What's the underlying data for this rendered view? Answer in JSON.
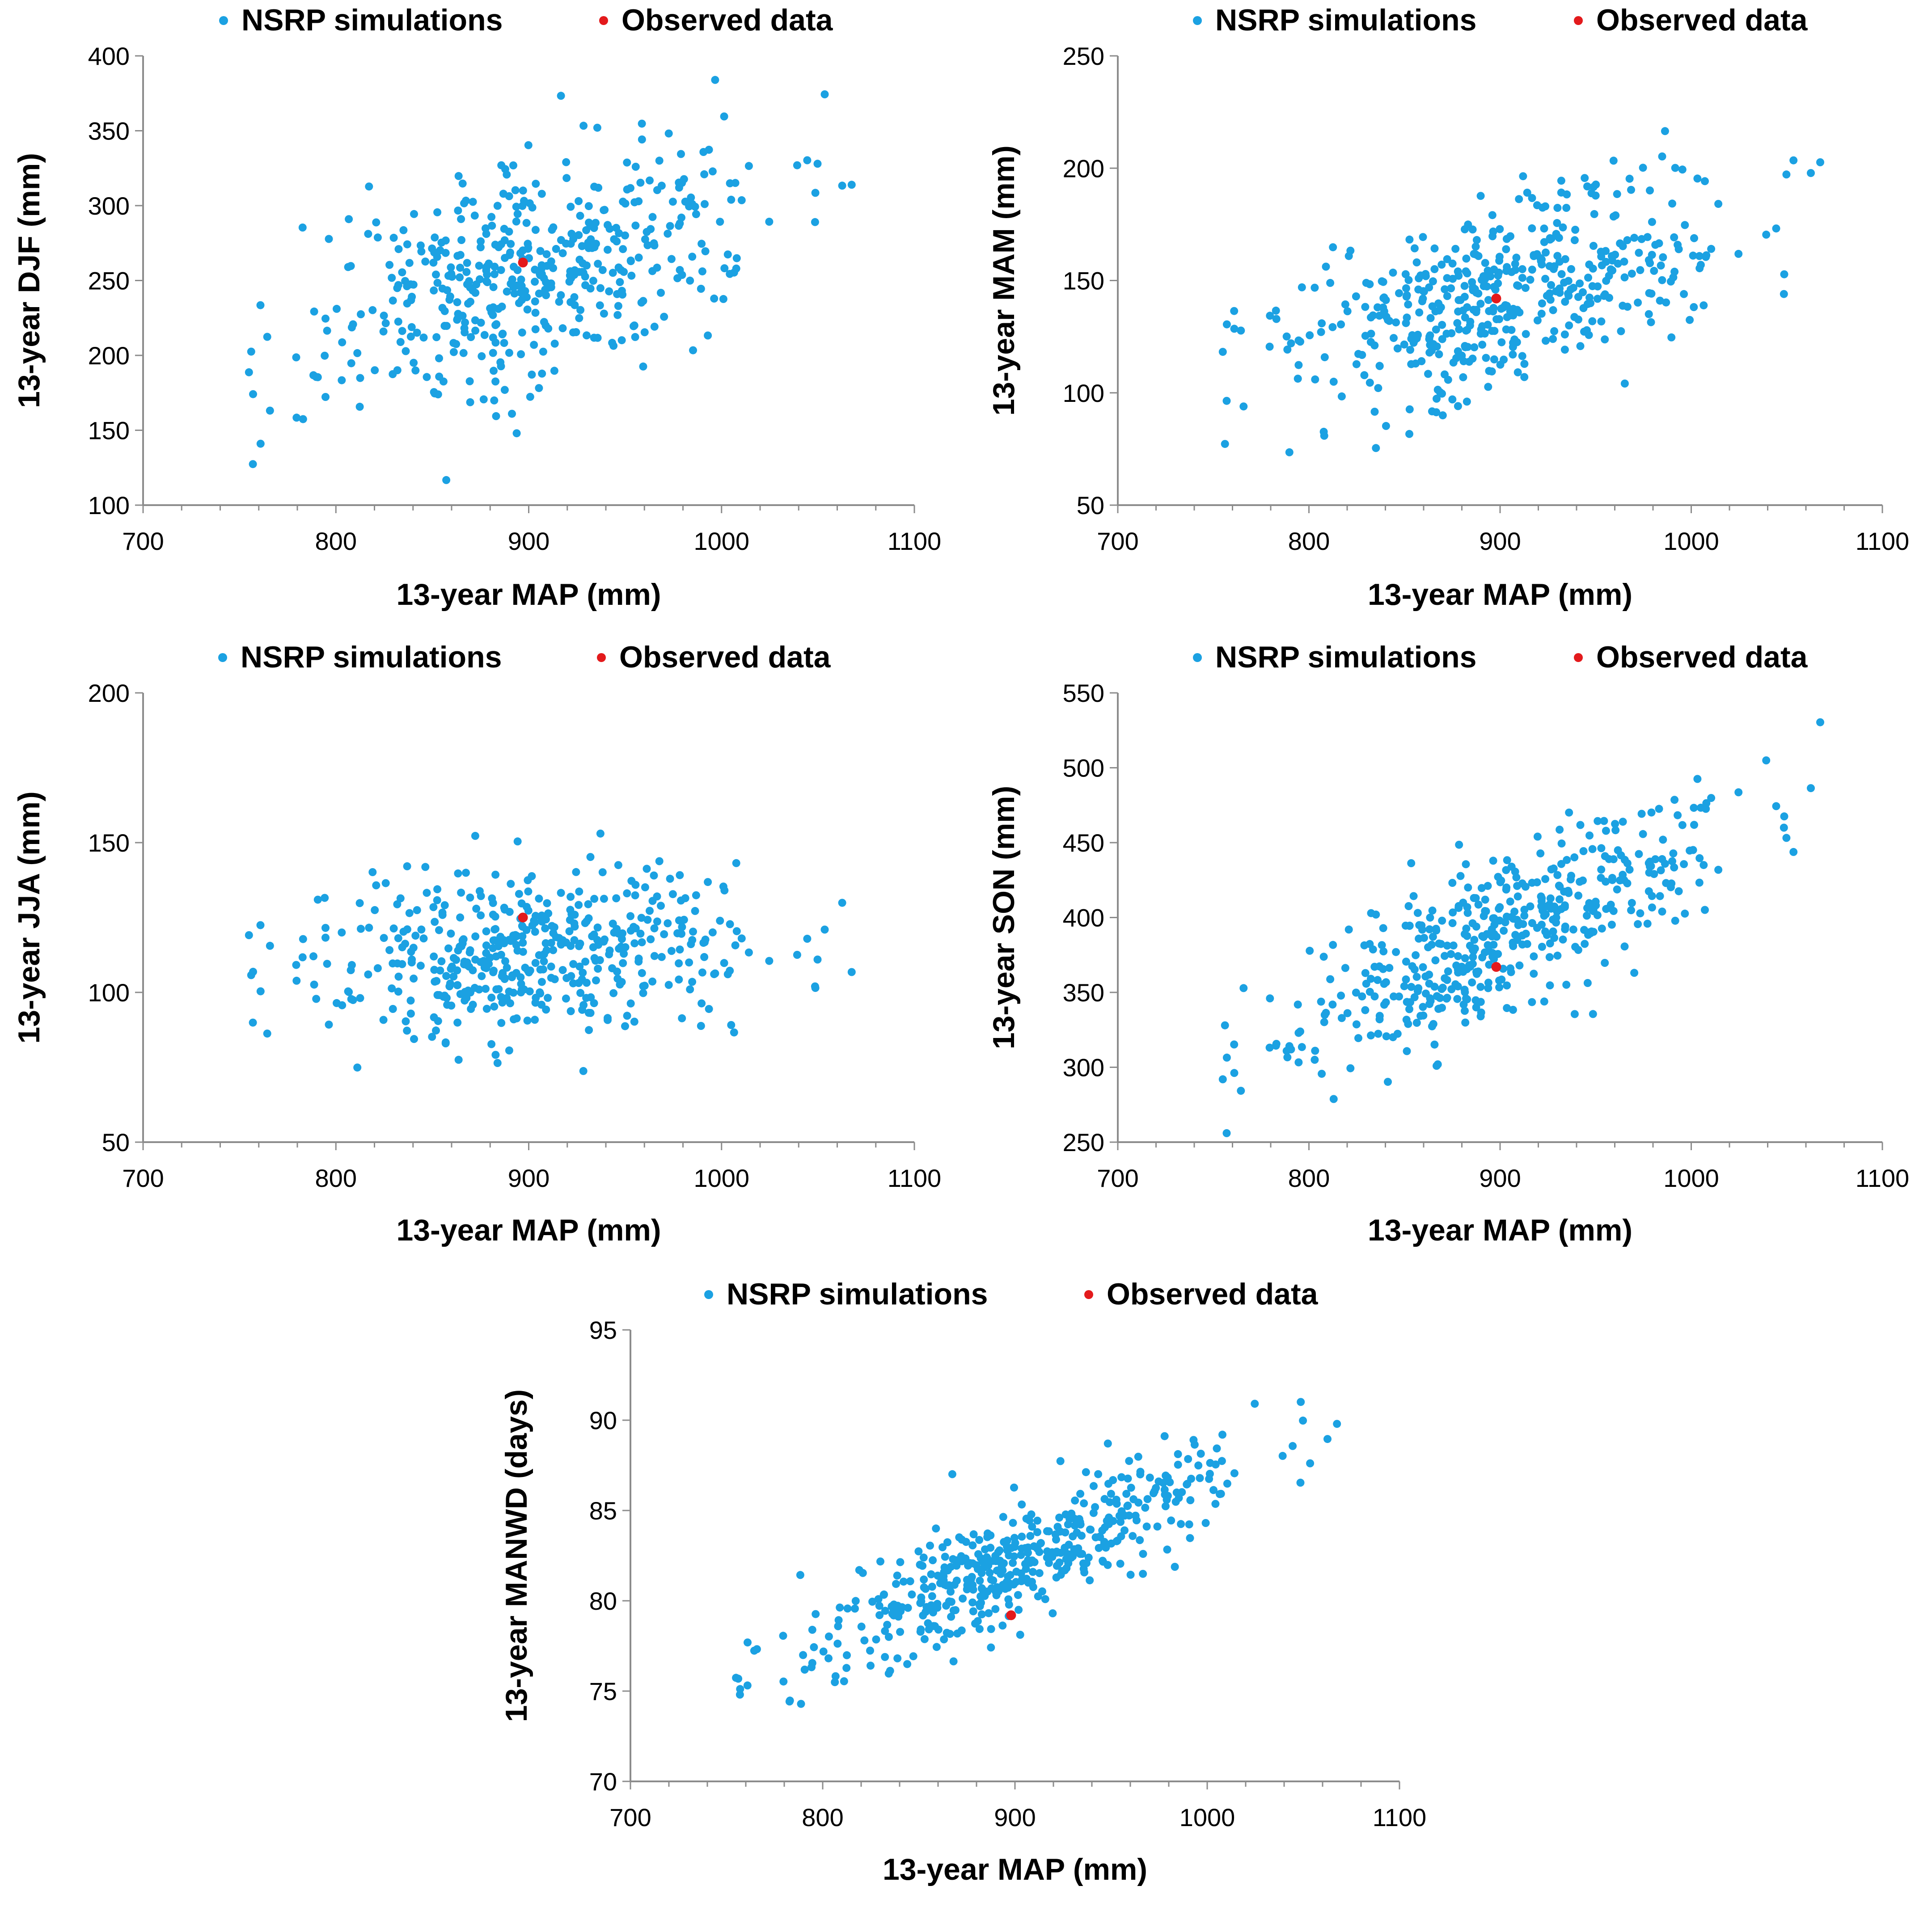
{
  "colors": {
    "sim": "#1ba1e2",
    "obs": "#e31a1c",
    "axis": "#8c8c8c"
  },
  "chart_data": [
    {
      "type": "scatter",
      "id": "djf",
      "title": "",
      "xlabel": "13-year MAP (mm)",
      "ylabel": "13-year DJF (mm)",
      "xlim": [
        700,
        1100
      ],
      "ylim": [
        100,
        400
      ],
      "xticks": [
        "700",
        "800",
        "900",
        "1000",
        "1100"
      ],
      "yticks": [
        "100",
        "150",
        "200",
        "250",
        "300",
        "350",
        "400"
      ],
      "legend": [
        "NSRP simulations",
        "Observed data"
      ],
      "sim_center": {
        "x": 900,
        "y": 255,
        "sx": 62,
        "sy": 38,
        "slope": 0.35
      },
      "observed": {
        "x": 897,
        "y": 262
      }
    },
    {
      "type": "scatter",
      "id": "mam",
      "title": "",
      "xlabel": "13-year MAP (mm)",
      "ylabel": "13-year MAM (mm)",
      "xlim": [
        700,
        1100
      ],
      "ylim": [
        50,
        250
      ],
      "xticks": [
        "700",
        "800",
        "900",
        "1000",
        "1100"
      ],
      "yticks": [
        "50",
        "100",
        "150",
        "200",
        "250"
      ],
      "legend": [
        "NSRP simulations",
        "Observed data"
      ],
      "sim_center": {
        "x": 905,
        "y": 145,
        "sx": 62,
        "sy": 20,
        "slope": 0.22
      },
      "observed": {
        "x": 898,
        "y": 142
      }
    },
    {
      "type": "scatter",
      "id": "jja",
      "title": "",
      "xlabel": "13-year MAP (mm)",
      "ylabel": "13-year JJA (mm)",
      "xlim": [
        700,
        1100
      ],
      "ylim": [
        50,
        200
      ],
      "xticks": [
        "700",
        "800",
        "900",
        "1000",
        "1100"
      ],
      "yticks": [
        "50",
        "100",
        "150",
        "200"
      ],
      "legend": [
        "NSRP simulations",
        "Observed data"
      ],
      "sim_center": {
        "x": 905,
        "y": 113,
        "sx": 62,
        "sy": 14,
        "slope": 0.03
      },
      "observed": {
        "x": 897,
        "y": 125
      }
    },
    {
      "type": "scatter",
      "id": "son",
      "title": "",
      "xlabel": "13-year MAP (mm)",
      "ylabel": "13-year SON (mm)",
      "xlim": [
        700,
        1100
      ],
      "ylim": [
        250,
        550
      ],
      "xticks": [
        "700",
        "800",
        "900",
        "1000",
        "1100"
      ],
      "yticks": [
        "250",
        "300",
        "350",
        "400",
        "450",
        "500",
        "550"
      ],
      "legend": [
        "NSRP simulations",
        "Observed data"
      ],
      "sim_center": {
        "x": 905,
        "y": 390,
        "sx": 62,
        "sy": 28,
        "slope": 0.6
      },
      "observed": {
        "x": 898,
        "y": 367
      }
    },
    {
      "type": "scatter",
      "id": "manwd",
      "title": "",
      "xlabel": "13-year MAP (mm)",
      "ylabel": "13-year MANWD (days)",
      "xlim": [
        700,
        1100
      ],
      "ylim": [
        70,
        95
      ],
      "xticks": [
        "700",
        "800",
        "900",
        "1000",
        "1100"
      ],
      "yticks": [
        "70",
        "75",
        "80",
        "85",
        "90",
        "95"
      ],
      "legend": [
        "NSRP simulations",
        "Observed data"
      ],
      "sim_center": {
        "x": 905,
        "y": 82.5,
        "sx": 62,
        "sy": 1.6,
        "slope": 0.048
      },
      "observed": {
        "x": 898,
        "y": 79.2
      }
    }
  ]
}
